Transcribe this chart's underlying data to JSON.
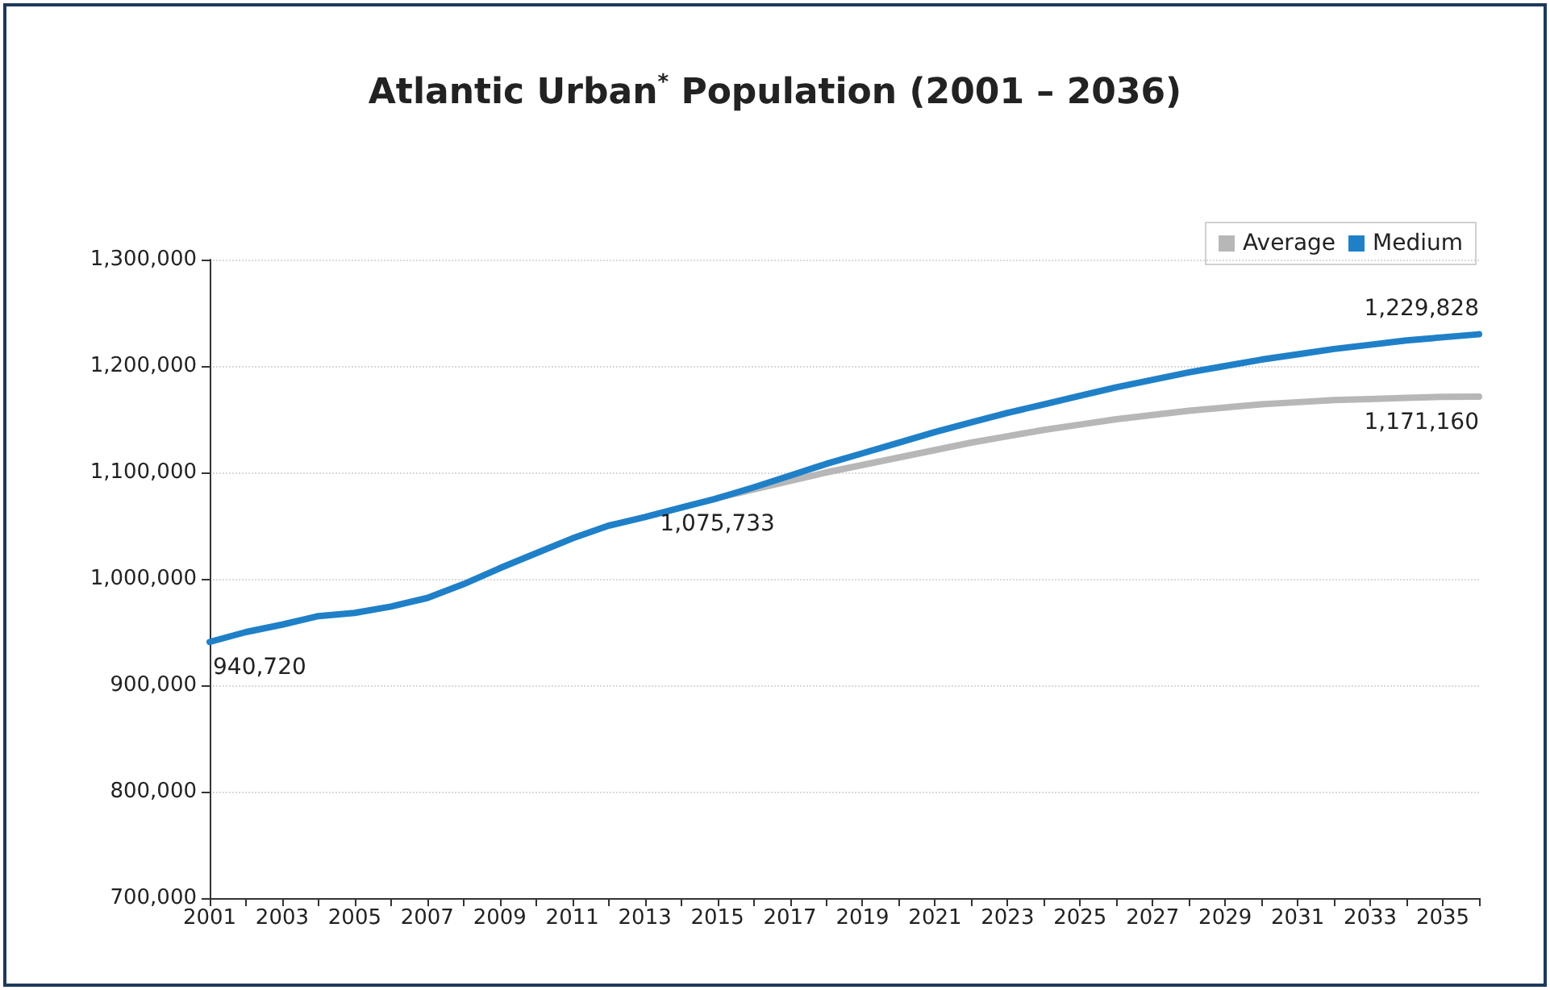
{
  "chart_data": {
    "type": "line",
    "title": "Atlantic Urban$^{*}$ Population (2001 – 2036)",
    "categories": [
      "2001",
      null,
      "2003",
      null,
      "2005",
      null,
      "2007",
      null,
      "2009",
      null,
      "2011",
      null,
      "2013",
      null,
      "2015",
      null,
      "2017",
      null,
      "2019",
      null,
      "2021",
      null,
      "2023",
      null,
      "2025",
      null,
      "2027",
      null,
      "2029",
      null,
      "2031",
      null,
      "2033",
      null,
      "2035",
      null
    ],
    "series": [
      {
        "name": "Average",
        "color": "#b7b7b7",
        "values": [
          null,
          null,
          null,
          null,
          null,
          null,
          null,
          null,
          null,
          null,
          null,
          null,
          null,
          null,
          1076000,
          1084000,
          1092000,
          1100000,
          1107000,
          1114000,
          1121000,
          1128000,
          1134000,
          1140000,
          1145000,
          1150000,
          1154000,
          1158000,
          1161000,
          1164000,
          1166000,
          1168000,
          1169000,
          1170000,
          1171000,
          1171160
        ],
        "value_labels": [
          null,
          null,
          null,
          null,
          null,
          null,
          null,
          null,
          null,
          null,
          null,
          null,
          null,
          null,
          null,
          null,
          null,
          null,
          null,
          null,
          null,
          null,
          null,
          null,
          null,
          null,
          null,
          null,
          null,
          null,
          null,
          null,
          null,
          null,
          null,
          "1,171,160"
        ]
      },
      {
        "name": "Medium",
        "color": "#1f80c8",
        "values": [
          940720,
          950000,
          957000,
          965000,
          968000,
          974000,
          982000,
          995000,
          1010000,
          1024000,
          1038000,
          1050000,
          1058000,
          1067000,
          1075733,
          1086000,
          1097000,
          1108000,
          1118000,
          1128000,
          1138000,
          1147000,
          1156000,
          1164000,
          1172000,
          1180000,
          1187000,
          1194000,
          1200000,
          1206000,
          1211000,
          1216000,
          1220000,
          1224000,
          1227000,
          1229828
        ],
        "value_labels": [
          "940,720",
          null,
          null,
          null,
          null,
          null,
          null,
          null,
          null,
          null,
          null,
          null,
          null,
          null,
          "1,075,733",
          null,
          null,
          null,
          null,
          null,
          null,
          null,
          null,
          null,
          null,
          null,
          null,
          null,
          null,
          null,
          null,
          null,
          null,
          null,
          null,
          "1,229,828"
        ]
      }
    ],
    "ylim": [
      700000,
      1300000
    ],
    "yticks": [
      {
        "value": 700000,
        "label": "700,000"
      },
      {
        "value": 800000,
        "label": "800,000"
      },
      {
        "value": 900000,
        "label": "900,000"
      },
      {
        "value": 1000000,
        "label": "1,000,000"
      },
      {
        "value": 1100000,
        "label": "1,100,000"
      },
      {
        "value": 1200000,
        "label": "1,200,000"
      },
      {
        "value": 1300000,
        "label": "1,300,000"
      }
    ],
    "grid": "y",
    "legend": "top right",
    "marker": "none",
    "line_style": "solid"
  }
}
